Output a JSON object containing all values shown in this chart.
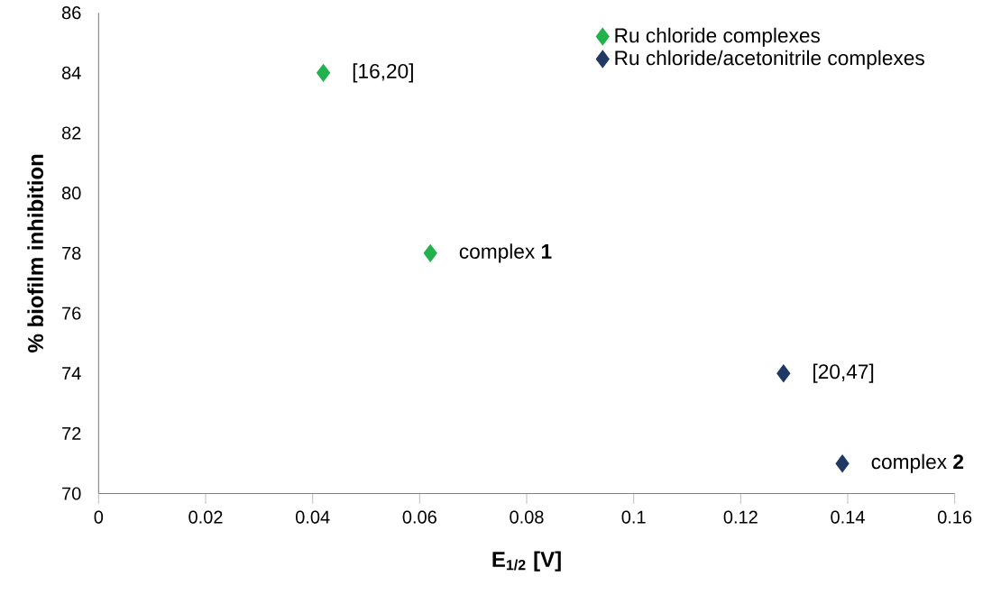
{
  "chart_data": {
    "type": "scatter",
    "xlabel": "E$_{1/2}$ [V]",
    "ylabel": "% biofilm inhibition",
    "series": [
      {
        "name": "Ru chloride complexes",
        "color": "#22b14c",
        "x": [
          0.042,
          0.062
        ],
        "values": [
          84,
          78
        ]
      },
      {
        "name": "Ru chloride/acetonitrile complexes",
        "color": "#1f3864",
        "x": [
          0.128,
          0.139
        ],
        "values": [
          74,
          71
        ]
      }
    ],
    "annotations": [
      {
        "text": "[16,20]",
        "x": 0.042,
        "y": 84
      },
      {
        "text": "complex **1**",
        "x": 0.062,
        "y": 78
      },
      {
        "text": "[20,47]",
        "x": 0.128,
        "y": 74
      },
      {
        "text": "complex **2**",
        "x": 0.139,
        "y": 71
      }
    ],
    "xlim": [
      0,
      0.16
    ],
    "xticks": [
      0,
      0.02,
      0.04,
      0.06,
      0.08,
      0.1,
      0.12,
      0.14,
      0.16
    ],
    "ylim": [
      70,
      86
    ],
    "yticks": [
      70,
      72,
      74,
      76,
      78,
      80,
      82,
      84,
      86
    ],
    "grid": false,
    "legend": "top right",
    "marker": "diamond"
  }
}
